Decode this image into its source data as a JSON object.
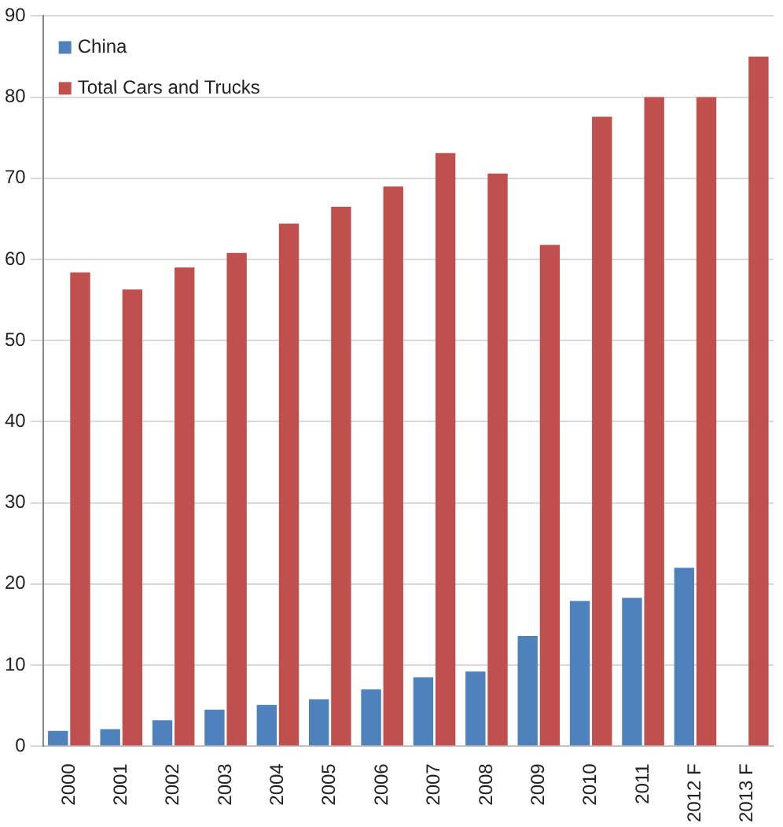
{
  "chart_data": {
    "type": "bar",
    "categories": [
      "2000",
      "2001",
      "2002",
      "2003",
      "2004",
      "2005",
      "2006",
      "2007",
      "2008",
      "2009",
      "2010",
      "2011",
      "2012 F",
      "2013 F"
    ],
    "series": [
      {
        "name": "China",
        "color": "#4f81bd",
        "values": [
          1.9,
          2.1,
          3.2,
          4.5,
          5.1,
          5.8,
          7,
          8.5,
          9.2,
          13.6,
          17.9,
          18.3,
          22,
          null
        ]
      },
      {
        "name": "Total Cars and Trucks",
        "color": "#c0504d",
        "values": [
          58.4,
          56.3,
          59,
          60.8,
          64.4,
          66.5,
          69,
          73.1,
          70.6,
          61.8,
          77.6,
          80,
          80,
          85
        ]
      }
    ],
    "ylim": [
      0,
      90
    ],
    "yticks": [
      0,
      10,
      20,
      30,
      40,
      50,
      60,
      70,
      80,
      90
    ],
    "grid": "y",
    "legend": "top left"
  }
}
